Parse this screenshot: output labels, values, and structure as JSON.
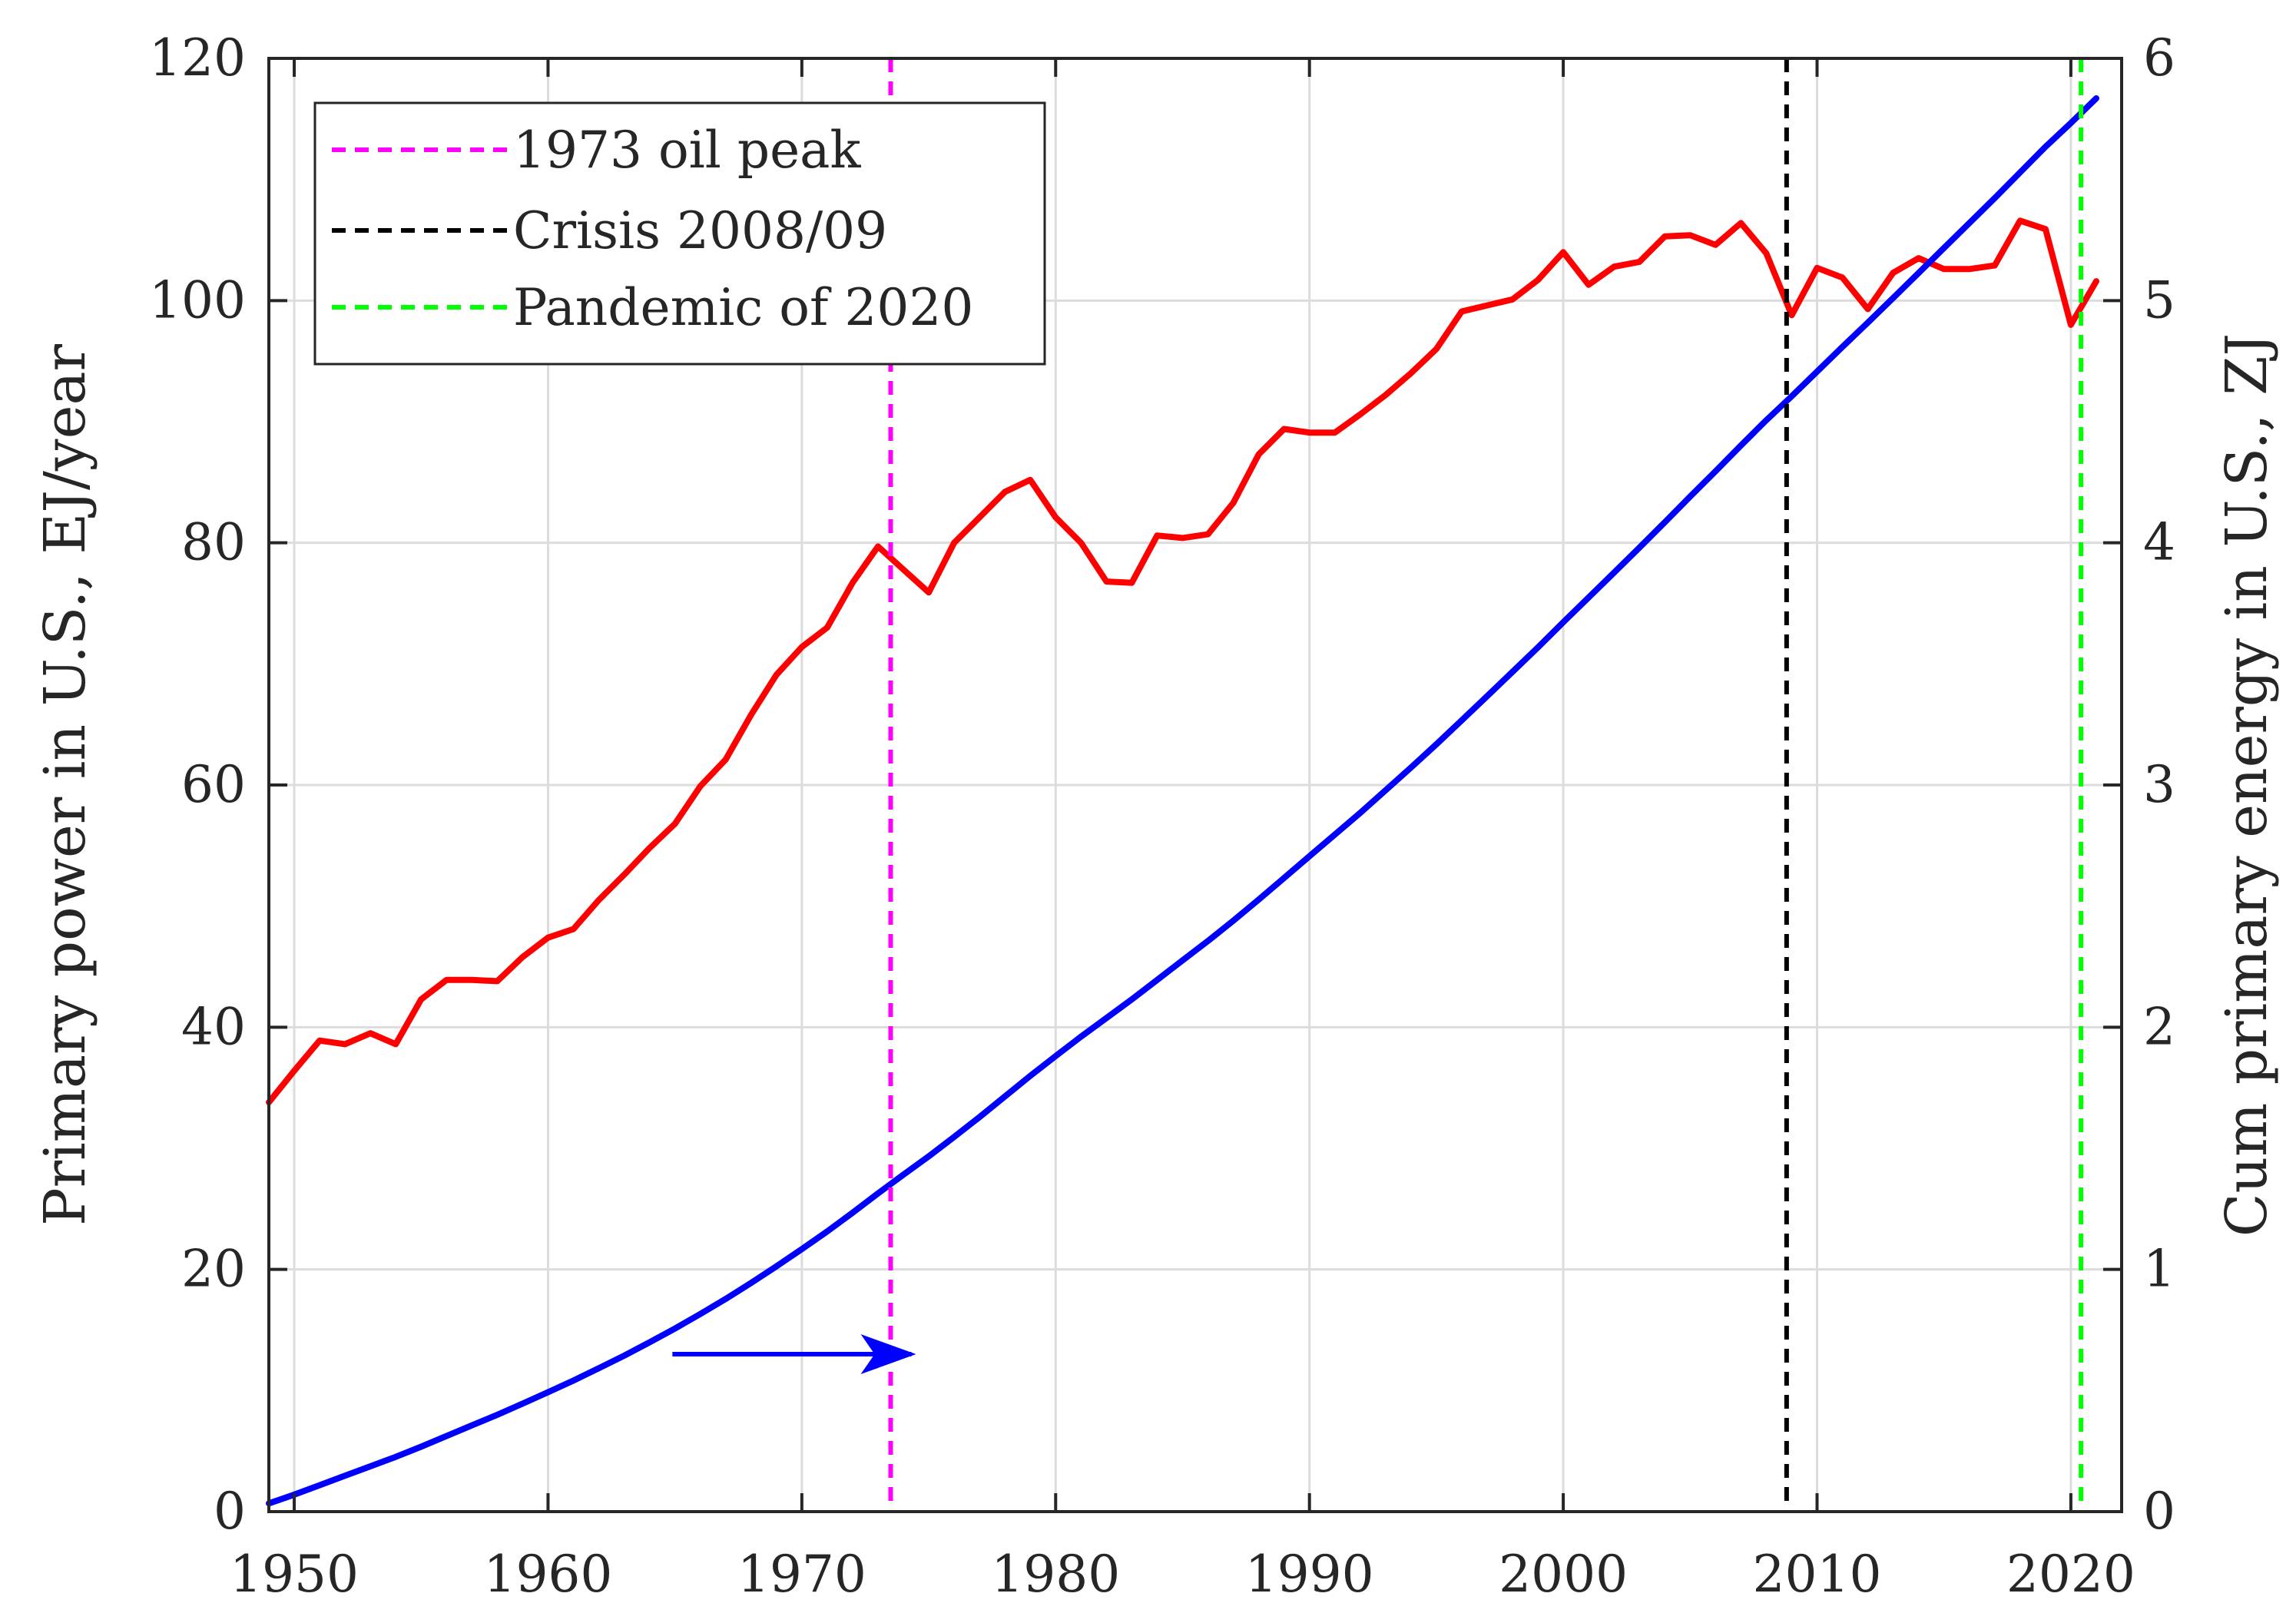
{
  "chart_data": {
    "type": "line",
    "x": [
      1949,
      1950,
      1951,
      1952,
      1953,
      1954,
      1955,
      1956,
      1957,
      1958,
      1959,
      1960,
      1961,
      1962,
      1963,
      1964,
      1965,
      1966,
      1967,
      1968,
      1969,
      1970,
      1971,
      1972,
      1973,
      1974,
      1975,
      1976,
      1977,
      1978,
      1979,
      1980,
      1981,
      1982,
      1983,
      1984,
      1985,
      1986,
      1987,
      1988,
      1989,
      1990,
      1991,
      1992,
      1993,
      1994,
      1995,
      1996,
      1997,
      1998,
      1999,
      2000,
      2001,
      2002,
      2003,
      2004,
      2005,
      2006,
      2007,
      2008,
      2009,
      2010,
      2011,
      2012,
      2013,
      2014,
      2015,
      2016,
      2017,
      2018,
      2019,
      2020,
      2021
    ],
    "xlim": [
      1949,
      2022
    ],
    "xticks": [
      "1950",
      "1960",
      "1970",
      "1980",
      "1990",
      "2000",
      "2010",
      "2020"
    ],
    "series": [
      {
        "name": "Primary power in U.S.",
        "axis": "left",
        "color": "#ff0000",
        "values": [
          33.8,
          36.4,
          38.9,
          38.6,
          39.5,
          38.6,
          42.3,
          43.9,
          43.9,
          43.8,
          45.8,
          47.4,
          48.1,
          50.5,
          52.6,
          54.8,
          56.8,
          59.9,
          62.1,
          65.8,
          69.1,
          71.4,
          73.0,
          76.7,
          79.7,
          77.8,
          75.9,
          80.0,
          82.1,
          84.2,
          85.2,
          82.1,
          80.0,
          76.8,
          76.7,
          80.6,
          80.4,
          80.7,
          83.3,
          87.3,
          89.4,
          89.1,
          89.1,
          90.6,
          92.2,
          94.0,
          96.0,
          99.1,
          99.6,
          100.1,
          101.7,
          104.0,
          101.3,
          102.8,
          103.2,
          105.3,
          105.4,
          104.6,
          106.4,
          103.9,
          98.8,
          102.7,
          101.9,
          99.3,
          102.3,
          103.5,
          102.6,
          102.6,
          102.9,
          106.6,
          105.9,
          98.0,
          101.6
        ]
      },
      {
        "name": "Cum primary energy in U.S.",
        "axis": "right",
        "color": "#0000ff",
        "values": [
          0.034,
          0.07,
          0.109,
          0.148,
          0.187,
          0.226,
          0.268,
          0.312,
          0.356,
          0.4,
          0.446,
          0.493,
          0.541,
          0.592,
          0.644,
          0.699,
          0.756,
          0.816,
          0.878,
          0.944,
          1.013,
          1.084,
          1.157,
          1.234,
          1.314,
          1.391,
          1.467,
          1.547,
          1.629,
          1.714,
          1.799,
          1.881,
          1.961,
          2.038,
          2.115,
          2.195,
          2.276,
          2.356,
          2.44,
          2.527,
          2.616,
          2.706,
          2.795,
          2.885,
          2.978,
          3.072,
          3.168,
          3.267,
          3.367,
          3.467,
          3.568,
          3.672,
          3.774,
          3.877,
          3.98,
          4.085,
          4.191,
          4.295,
          4.402,
          4.506,
          4.605,
          4.707,
          4.809,
          4.909,
          5.011,
          5.114,
          5.217,
          5.32,
          5.423,
          5.529,
          5.635,
          5.733,
          5.835
        ]
      }
    ],
    "vlines": [
      {
        "label": "1973 oil peak",
        "x": 1973.5,
        "color": "#ff00ff"
      },
      {
        "label": "Crisis 2008/09",
        "x": 2008.8,
        "color": "#000000"
      },
      {
        "label": "Pandemic of 2020",
        "x": 2020.4,
        "color": "#00ff00"
      }
    ],
    "ylabel_left": "Primary power in U.S., EJ/year",
    "ylabel_right": "Cum primary energy in U.S., ZJ",
    "ylim_left": [
      0,
      120
    ],
    "yticks_left": [
      "0",
      "20",
      "40",
      "60",
      "80",
      "100",
      "120"
    ],
    "ylim_right": [
      0,
      6
    ],
    "yticks_right": [
      "0",
      "1",
      "2",
      "3",
      "4",
      "5",
      "6"
    ],
    "grid": true,
    "legend_position": "top-left",
    "annotation_arrow": {
      "color": "#0000ff",
      "x_from": 1964.9,
      "x_to": 1974.5,
      "y_left": 13.0,
      "direction": "right"
    }
  }
}
